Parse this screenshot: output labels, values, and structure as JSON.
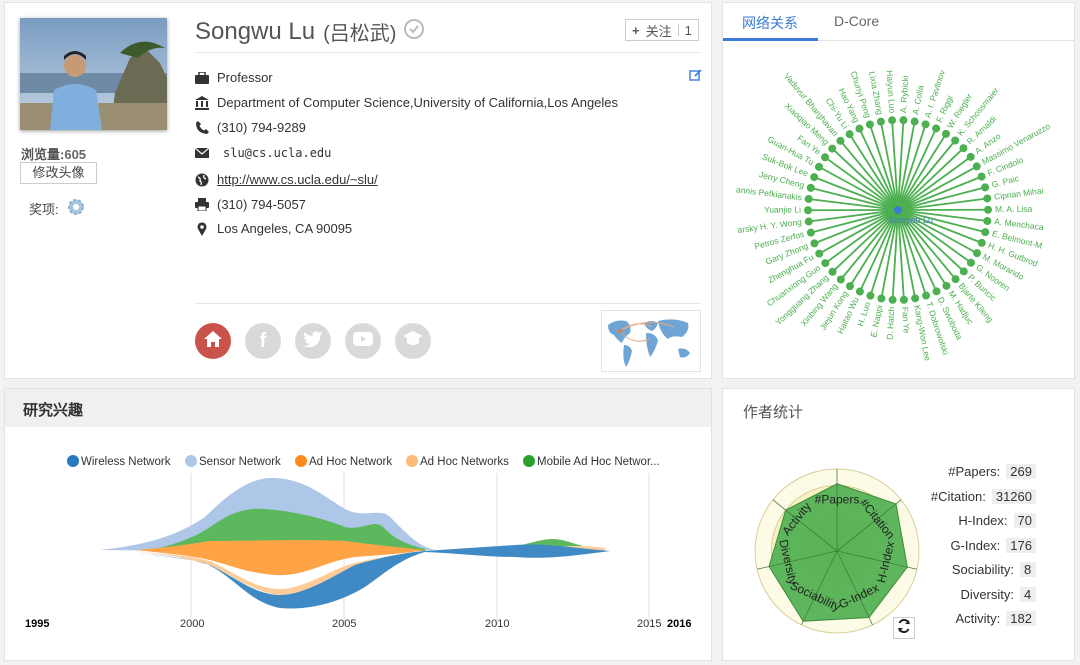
{
  "profile": {
    "name": "Songwu Lu",
    "name_cn": "(吕松武)",
    "follow_label": "关注",
    "follow_count": "1",
    "views_label": "浏览量:",
    "views_value": "605",
    "change_photo_label": "修改头像",
    "awards_label": "奖项:",
    "position": "Professor",
    "affiliation": "Department of Computer Science,University of California,Los Angeles",
    "phone": "(310) 794-9289",
    "email": "slu@cs.ucla.edu",
    "homepage": "http://www.cs.ucla.edu/~slu/",
    "fax": "(310) 794-5057",
    "address": "Los Angeles, CA 90095",
    "social_icons": [
      "home-icon",
      "facebook-icon",
      "twitter-icon",
      "youtube-icon",
      "scholar-icon"
    ],
    "colors": {
      "home_active": "#c9534b",
      "social_inactive": "#d9d9d9"
    }
  },
  "network": {
    "tabs": [
      "网络关系",
      "D-Core"
    ],
    "center": "Songwu Lu",
    "color": "#4caf50",
    "nodes": [
      "A. Rybicki",
      "A. Colla",
      "A. I. Pavlinov",
      "F. Riggi",
      "W. Riegler",
      "K. Schossmaier",
      "R. Arnaldi",
      "A. Anzo",
      "Massimo Venaruzzo",
      "F. Cindolo",
      "G. Paic",
      "Ciprian Mihai",
      "M. A. Lisa",
      "A. Menchaca",
      "E. Belmont-M",
      "H. H. Gutbrod",
      "M. Morando",
      "G. Nooren",
      "P. Buncic",
      "Bjarte Kileng",
      "M. Hadjuc",
      "D. Swoboda",
      "T. Dobrowolski",
      "Kang-Won Lee",
      "Fan Ye",
      "D. Hatch",
      "E. Nappi",
      "H. Luo",
      "Haitao Wu",
      "Jiejun Kong",
      "Xinbing Wang",
      "Yongguang Zhang",
      "Chuanxiong Guo",
      "Zhenghua Fu",
      "Gary Zhong",
      "Petros Zerfos",
      "arsky H. Y. Wong",
      "Yuanjie Li",
      "annis Pefkianakis",
      "Jerry Cheng",
      "Suk-Bok Lee",
      "Guan-Hua Tu",
      "Fan Ye",
      "Xiaoqiao Meng",
      "Vaduvur Bharghavan",
      "Chi-Yu Li",
      "Hao Yang",
      "Chunyi Peng",
      "Lixia Zhang",
      "Haiyun Luo"
    ]
  },
  "interest": {
    "title": "研究兴趣",
    "legend": [
      {
        "name": "Wireless Network",
        "color": "#2a78c0"
      },
      {
        "name": "Sensor Network",
        "color": "#aec7e8"
      },
      {
        "name": "Ad Hoc Network",
        "color": "#ff8c1a"
      },
      {
        "name": "Ad Hoc Networks",
        "color": "#ffbb78"
      },
      {
        "name": "Mobile Ad Hoc Networ...",
        "color": "#2ca02c"
      }
    ],
    "axis": {
      "start": "1995",
      "end": "2016",
      "ticks": [
        "2000",
        "2005",
        "2010",
        "2015"
      ]
    }
  },
  "stats": {
    "title": "作者统计",
    "rows": [
      {
        "label": "#Papers:",
        "value": "269"
      },
      {
        "label": "#Citation:",
        "value": "31260"
      },
      {
        "label": "H-Index:",
        "value": "70"
      },
      {
        "label": "G-Index:",
        "value": "176"
      },
      {
        "label": "Sociability:",
        "value": "8"
      },
      {
        "label": "Diversity:",
        "value": "4"
      },
      {
        "label": "Activity:",
        "value": "182"
      }
    ],
    "radar_axes": [
      "#Papers",
      "#Citation",
      "H-Index",
      "G-Index",
      "Sociability",
      "Diversity",
      "Activity"
    ],
    "radar_values": [
      0.82,
      0.92,
      0.88,
      0.9,
      0.95,
      0.85,
      0.8
    ],
    "radar_color": "#4caf50"
  }
}
